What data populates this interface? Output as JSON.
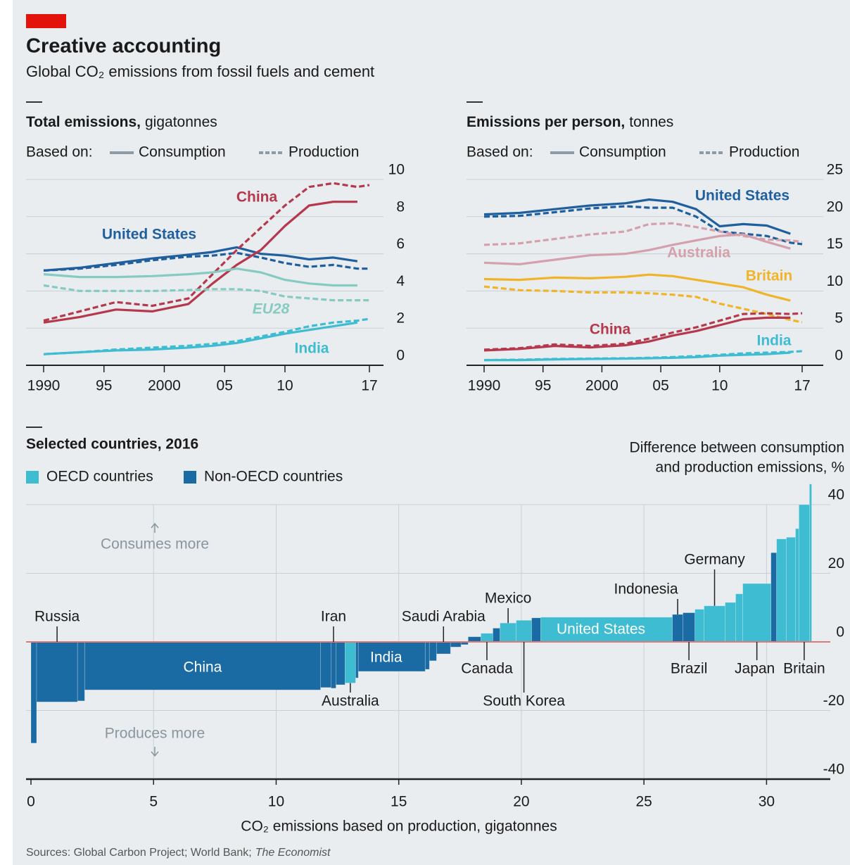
{
  "title": "Creative accounting",
  "subtitle": "Global CO₂ emissions from fossil fuels and cement",
  "source": {
    "text": "Sources: Global Carbon Project; World Bank;",
    "italic": "The Economist"
  },
  "chart_data": [
    {
      "type": "line",
      "title": "Total emissions,",
      "unit": "gigatonnes",
      "legend": {
        "prefix": "Based on:",
        "items": [
          "Consumption",
          "Production"
        ],
        "color": "#8c9ba5"
      },
      "x": [
        1990,
        1993,
        1996,
        1999,
        2002,
        2004,
        2006,
        2008,
        2010,
        2012,
        2014,
        2016,
        2017
      ],
      "xlim": [
        1990,
        2017
      ],
      "xticks": [
        1990,
        {
          "value": 1995,
          "label": "95"
        },
        2000,
        {
          "value": 2005,
          "label": "05"
        },
        {
          "value": 2010,
          "label": "10"
        },
        {
          "value": 2017,
          "label": "17"
        }
      ],
      "ylim": [
        0,
        10
      ],
      "yticks": [
        0,
        2,
        4,
        6,
        8,
        10
      ],
      "grid": true,
      "series": [
        {
          "name": "United States",
          "color": "#1f5f9e",
          "consumption": [
            5.1,
            5.25,
            5.5,
            5.75,
            5.95,
            6.1,
            6.35,
            6.0,
            5.9,
            5.7,
            5.8,
            5.6,
            null
          ],
          "production": [
            5.1,
            5.2,
            5.4,
            5.65,
            5.85,
            5.9,
            6.05,
            5.8,
            5.5,
            5.3,
            5.4,
            5.2,
            5.2
          ]
        },
        {
          "name": "China",
          "color": "#b5384c",
          "consumption": [
            2.3,
            2.6,
            3.0,
            2.9,
            3.3,
            4.4,
            5.4,
            6.2,
            7.5,
            8.6,
            8.8,
            8.8,
            null
          ],
          "production": [
            2.4,
            2.9,
            3.4,
            3.2,
            3.6,
            4.9,
            6.2,
            7.4,
            8.6,
            9.6,
            9.8,
            9.6,
            9.7
          ]
        },
        {
          "name": "EU28",
          "color": "#86cbc2",
          "consumption": [
            4.9,
            4.75,
            4.75,
            4.8,
            4.9,
            5.0,
            5.2,
            5.0,
            4.6,
            4.4,
            4.3,
            4.3,
            null
          ],
          "production": [
            4.3,
            4.0,
            4.0,
            4.0,
            4.05,
            4.1,
            4.1,
            4.0,
            3.7,
            3.6,
            3.5,
            3.5,
            3.5
          ]
        },
        {
          "name": "India",
          "color": "#3ebcd2",
          "consumption": [
            0.6,
            0.7,
            0.8,
            0.85,
            0.95,
            1.05,
            1.2,
            1.45,
            1.7,
            1.9,
            2.1,
            2.3,
            null
          ],
          "production": [
            0.6,
            0.7,
            0.85,
            0.95,
            1.05,
            1.15,
            1.3,
            1.55,
            1.8,
            2.1,
            2.3,
            2.4,
            2.5
          ]
        }
      ]
    },
    {
      "type": "line",
      "title": "Emissions per person,",
      "unit": "tonnes",
      "legend": {
        "prefix": "Based on:",
        "items": [
          "Consumption",
          "Production"
        ],
        "color": "#8c9ba5"
      },
      "x": [
        1990,
        1993,
        1996,
        1999,
        2002,
        2004,
        2006,
        2008,
        2010,
        2012,
        2014,
        2016,
        2017
      ],
      "xlim": [
        1990,
        2017
      ],
      "xticks": [
        1990,
        {
          "value": 1995,
          "label": "95"
        },
        2000,
        {
          "value": 2005,
          "label": "05"
        },
        {
          "value": 2010,
          "label": "10"
        },
        {
          "value": 2017,
          "label": "17"
        }
      ],
      "ylim": [
        0,
        25
      ],
      "yticks": [
        0,
        5,
        10,
        15,
        20,
        25
      ],
      "grid": true,
      "series": [
        {
          "name": "United States",
          "color": "#1f5f9e",
          "consumption": [
            20.3,
            20.5,
            21.0,
            21.5,
            21.8,
            22.3,
            22.0,
            21.0,
            18.7,
            19.0,
            18.8,
            17.7,
            null
          ],
          "production": [
            20.0,
            20.1,
            20.6,
            21.1,
            21.4,
            21.2,
            21.2,
            20.0,
            18.0,
            17.7,
            17.4,
            16.5,
            16.3
          ]
        },
        {
          "name": "Australia",
          "color": "#d4a0ab",
          "consumption": [
            13.8,
            13.6,
            14.2,
            14.8,
            15.0,
            15.5,
            16.2,
            16.8,
            17.4,
            17.6,
            16.6,
            15.7,
            null
          ],
          "production": [
            16.2,
            16.4,
            17.0,
            17.6,
            18.0,
            19.0,
            19.1,
            18.6,
            18.0,
            17.4,
            16.9,
            16.8,
            16.6
          ]
        },
        {
          "name": "Britain",
          "color": "#f0b429",
          "consumption": [
            11.6,
            11.5,
            11.8,
            11.7,
            11.9,
            12.2,
            12.0,
            11.5,
            11.0,
            10.5,
            9.5,
            8.7,
            null
          ],
          "production": [
            10.6,
            10.1,
            10.0,
            9.8,
            9.8,
            9.7,
            9.5,
            9.2,
            8.3,
            7.6,
            6.9,
            6.1,
            5.8
          ]
        },
        {
          "name": "China",
          "color": "#b5384c",
          "consumption": [
            2.0,
            2.2,
            2.6,
            2.4,
            2.7,
            3.2,
            4.0,
            4.6,
            5.4,
            6.2,
            6.4,
            6.4,
            null
          ],
          "production": [
            2.1,
            2.3,
            2.8,
            2.6,
            2.9,
            3.6,
            4.4,
            5.1,
            6.0,
            6.9,
            7.0,
            6.9,
            7.0
          ]
        },
        {
          "name": "India",
          "color": "#3ebcd2",
          "consumption": [
            0.7,
            0.7,
            0.8,
            0.85,
            0.9,
            0.95,
            1.0,
            1.1,
            1.3,
            1.4,
            1.5,
            1.7,
            null
          ],
          "production": [
            0.7,
            0.75,
            0.85,
            0.9,
            0.95,
            1.0,
            1.1,
            1.25,
            1.4,
            1.6,
            1.7,
            1.8,
            1.9
          ]
        }
      ]
    },
    {
      "type": "variwide",
      "title": "Selected countries, 2016",
      "legend": [
        {
          "name": "OECD countries",
          "color": "#3ebcd2"
        },
        {
          "name": "Non-OECD countries",
          "color": "#1a6aa3"
        }
      ],
      "y_label": [
        "Difference between consumption",
        "and production emissions, %"
      ],
      "x_label": "CO₂ emissions based on production, gigatonnes",
      "annotations": [
        "Consumes more",
        "Produces more"
      ],
      "categories": [
        null,
        "Russia",
        null,
        "China",
        null,
        "Iran",
        null,
        "Australia",
        null,
        "India",
        null,
        null,
        "Saudi Arabia",
        null,
        null,
        null,
        "Canada",
        null,
        "Mexico",
        "South Korea",
        null,
        "United States",
        "Indonesia",
        "Brazil",
        null,
        "Germany",
        null,
        null,
        "Japan",
        null,
        null,
        null,
        null,
        "Britain",
        null
      ],
      "widths": [
        0.23,
        1.67,
        0.29,
        9.62,
        0.43,
        0.2,
        0.37,
        0.43,
        0.11,
        2.73,
        0.17,
        0.29,
        0.57,
        0.43,
        0.29,
        0.52,
        0.49,
        0.29,
        0.66,
        0.63,
        0.37,
        5.37,
        0.43,
        0.49,
        0.37,
        0.86,
        0.43,
        0.29,
        1.15,
        0.23,
        0.4,
        0.37,
        0.14,
        0.43,
        0.09
      ],
      "values": [
        -29.5,
        -17.5,
        -17.2,
        -14,
        -13.3,
        -13.5,
        -12.5,
        -12,
        -10.5,
        -8.6,
        -8,
        -5.5,
        -3.5,
        -1.5,
        -0.8,
        1.5,
        2.5,
        4,
        5.5,
        6.3,
        7,
        7.2,
        8,
        8.5,
        9.5,
        10.5,
        11.5,
        14,
        17,
        26,
        30,
        30.5,
        33,
        40,
        46
      ],
      "group": [
        1,
        1,
        1,
        1,
        1,
        1,
        1,
        0,
        1,
        1,
        1,
        1,
        1,
        1,
        1,
        1,
        0,
        1,
        0,
        0,
        1,
        0,
        1,
        1,
        0,
        0,
        0,
        0,
        0,
        1,
        0,
        0,
        0,
        0,
        0
      ],
      "xlim": [
        0,
        32.6
      ],
      "xticks": [
        0,
        5,
        10,
        15,
        20,
        25,
        30
      ],
      "ylim": [
        -40,
        40
      ],
      "yticks": [
        -40,
        -20,
        0,
        20,
        40
      ],
      "grid": true,
      "zero_color": "#e07a7a"
    }
  ]
}
